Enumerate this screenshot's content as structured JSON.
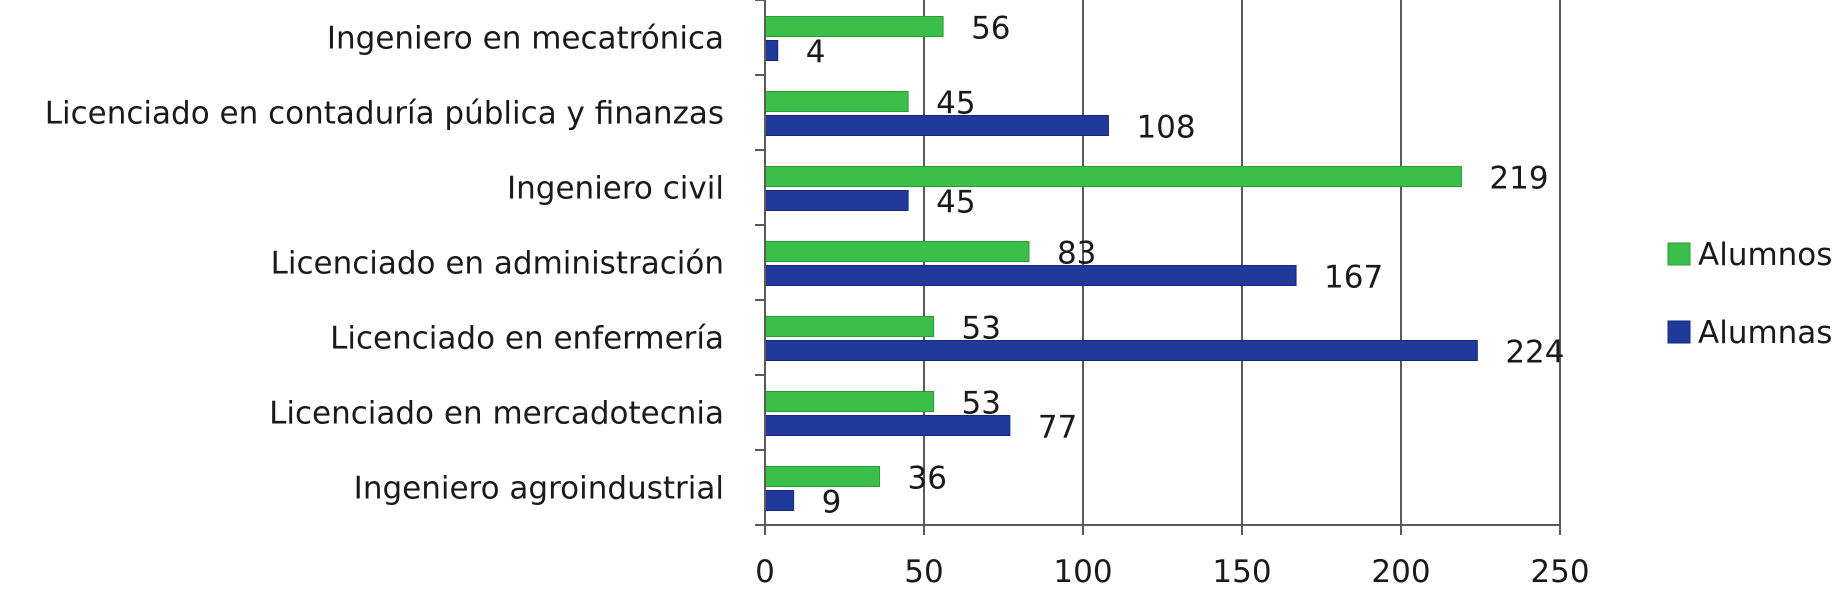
{
  "chart_data": {
    "type": "bar",
    "orientation": "horizontal",
    "categories": [
      "Ingeniero en mecatrónica",
      "Licenciado en contaduría pública y finanzas",
      "Ingeniero civil",
      "Licenciado en administración",
      "Licenciado en enfermería",
      "Licenciado en mercadotecnia",
      "Ingeniero agroindustrial"
    ],
    "series": [
      {
        "name": "Alumnos",
        "color": "#3cbf4a",
        "values": [
          56,
          45,
          219,
          83,
          53,
          53,
          36
        ]
      },
      {
        "name": "Alumnas",
        "color": "#1f3a9a",
        "values": [
          4,
          108,
          45,
          167,
          224,
          77,
          9
        ]
      }
    ],
    "xlim": [
      0,
      250
    ],
    "xticks": [
      0,
      50,
      100,
      150,
      200,
      250
    ],
    "grid": "vertical",
    "legend_position": "right",
    "title": "",
    "xlabel": "",
    "ylabel": ""
  }
}
